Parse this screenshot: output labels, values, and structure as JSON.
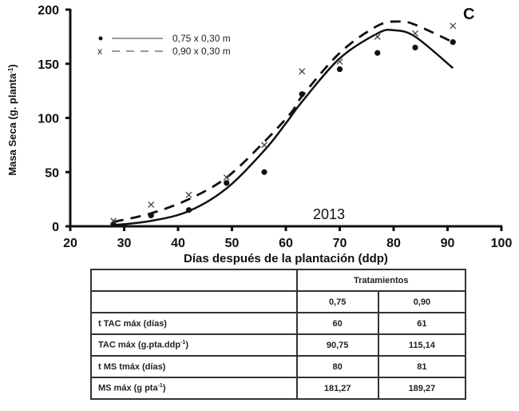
{
  "chart_data": {
    "type": "line",
    "title": "",
    "panel_label": "C",
    "annotation": "2013",
    "xlabel": "Días después de la plantación (ddp)",
    "ylabel": "Masa Seca (g. planta-1)",
    "ylabel_main": "Masa Seca (g. planta",
    "ylabel_sup": "-1",
    "ylabel_close": ")",
    "xlim": [
      20,
      100
    ],
    "ylim": [
      0,
      200
    ],
    "xticks": [
      20,
      30,
      40,
      50,
      60,
      70,
      80,
      90,
      100
    ],
    "yticks": [
      0,
      50,
      100,
      150,
      200
    ],
    "grid": false,
    "legend_position": "upper left",
    "series": [
      {
        "name": "0,75 x 0,30 m",
        "marker": "dot",
        "line": "solid",
        "x": [
          28,
          35,
          42,
          49,
          56,
          63,
          70,
          77,
          84,
          91
        ],
        "observed": [
          2,
          10,
          15,
          40,
          50,
          122,
          145,
          160,
          165,
          170
        ],
        "fitted_x": [
          28,
          35,
          42,
          49,
          56,
          60,
          63,
          70,
          77,
          80,
          84,
          91
        ],
        "fitted": [
          1,
          5,
          14,
          35,
          70,
          95,
          115,
          155,
          178,
          181,
          175,
          146
        ]
      },
      {
        "name": "0,90 x 0,30 m",
        "marker": "x",
        "line": "dashed",
        "x": [
          28,
          35,
          42,
          49,
          56,
          63,
          70,
          77,
          84,
          91
        ],
        "observed": [
          5,
          20,
          29,
          45,
          75,
          143,
          152,
          175,
          178,
          185
        ],
        "fitted_x": [
          28,
          35,
          42,
          49,
          56,
          61,
          63,
          70,
          77,
          81,
          84,
          91
        ],
        "fitted": [
          4,
          12,
          25,
          45,
          78,
          105,
          120,
          160,
          185,
          189,
          186,
          170
        ]
      }
    ]
  },
  "legend": {
    "items": [
      {
        "marker": "•",
        "label": "0,75 x 0,30 m"
      },
      {
        "marker": "x",
        "label": "0,90 x 0,30 m"
      }
    ]
  },
  "table": {
    "header": "Tratamientos",
    "columns": [
      "0,75",
      "0,90"
    ],
    "rows": [
      {
        "label": "t TAC máx (días)",
        "values": [
          "60",
          "61"
        ]
      },
      {
        "label_main": "TAC máx (g.pta.ddp",
        "label_sup": "-1",
        "label_close": ")",
        "label": "TAC máx (g.pta.ddp-1)",
        "values": [
          "90,75",
          "115,14"
        ]
      },
      {
        "label": "t MS tmáx (días)",
        "values": [
          "80",
          "81"
        ]
      },
      {
        "label_main": "MS máx (g pta",
        "label_sup": "-1",
        "label_close": ")",
        "label": "MS máx (g pta-1)",
        "values": [
          "181,27",
          "189,27"
        ]
      }
    ]
  }
}
